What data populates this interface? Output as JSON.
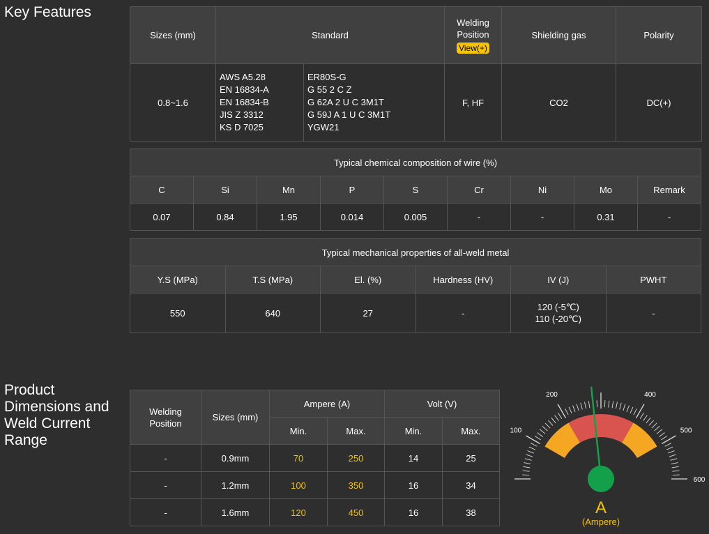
{
  "key_features": {
    "title": "Key Features",
    "spec": {
      "headers": {
        "sizes": "Sizes (mm)",
        "standard": "Standard",
        "welding_position": "Welding Position",
        "view": "View(+)",
        "shielding_gas": "Shielding gas",
        "polarity": "Polarity"
      },
      "row": {
        "sizes": "0.8~1.6",
        "standard_col1": [
          "AWS A5.28",
          "EN 16834-A",
          "EN 16834-B",
          "JIS Z 3312",
          "KS D 7025"
        ],
        "standard_col2": [
          "ER80S-G",
          "G 55 2 C Z",
          "G 62A 2 U C 3M1T",
          "G 59J A 1 U C 3M1T",
          "YGW21"
        ],
        "welding_position": "F, HF",
        "shielding_gas": "CO2",
        "polarity": "DC(+)"
      }
    },
    "chemical": {
      "caption": "Typical chemical composition of wire (%)",
      "headers": [
        "C",
        "Si",
        "Mn",
        "P",
        "S",
        "Cr",
        "Ni",
        "Mo",
        "Remark"
      ],
      "values": [
        "0.07",
        "0.84",
        "1.95",
        "0.014",
        "0.005",
        "-",
        "-",
        "0.31",
        "-"
      ]
    },
    "mechanical": {
      "caption": "Typical mechanical properties of all-weld metal",
      "headers": [
        "Y.S (MPa)",
        "T.S (MPa)",
        "El. (%)",
        "Hardness (HV)",
        "IV (J)",
        "PWHT"
      ],
      "values": [
        "550",
        "640",
        "27",
        "-",
        "120 (-5℃)\n110 (-20℃)",
        "-"
      ]
    }
  },
  "product_dimensions": {
    "title": "Product\nDimensions and\nWeld Current\nRange",
    "headers": {
      "welding_position": "Welding Position",
      "sizes": "Sizes (mm)",
      "ampere": "Ampere (A)",
      "volt": "Volt (V)",
      "min": "Min.",
      "max": "Max."
    },
    "rows": [
      {
        "position": "-",
        "size": "0.9mm",
        "amp_min": "70",
        "amp_max": "250",
        "volt_min": "14",
        "volt_max": "25"
      },
      {
        "position": "-",
        "size": "1.2mm",
        "amp_min": "100",
        "amp_max": "350",
        "volt_min": "16",
        "volt_max": "34"
      },
      {
        "position": "-",
        "size": "1.6mm",
        "amp_min": "120",
        "amp_max": "450",
        "volt_min": "16",
        "volt_max": "38"
      }
    ]
  },
  "gauge": {
    "unit_symbol": "A",
    "unit_name": "(Ampere)",
    "min": 0,
    "max": 600,
    "major_ticks": [
      0,
      100,
      200,
      300,
      400,
      500,
      600
    ],
    "yellow_ranges": [
      [
        100,
        200
      ],
      [
        400,
        500
      ]
    ],
    "red_range": [
      200,
      400
    ],
    "needle_value": 280,
    "colors": {
      "yellow": "#f5a623",
      "red": "#d9534f",
      "needle": "#1a9e4a",
      "hub": "#14a04a",
      "unit": "#f5c400"
    }
  }
}
